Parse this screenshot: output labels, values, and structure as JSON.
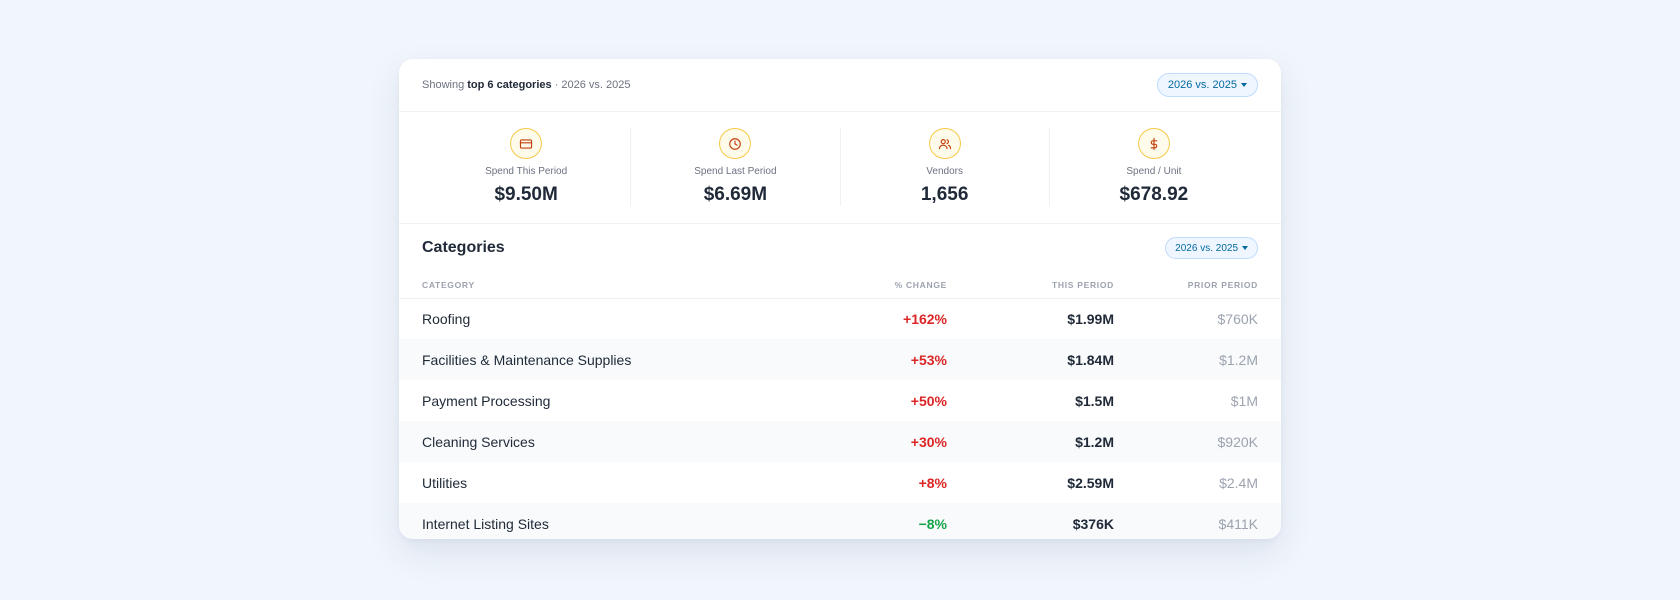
{
  "header": {
    "showing_prefix": "Showing",
    "showing_bold": "top 6 categories",
    "showing_suffix": "· 2026 vs. 2025",
    "period_selector": "2026 vs. 2025"
  },
  "stats": [
    {
      "label": "Spend This Period",
      "value": "$9.50M",
      "icon": "credit-card-icon"
    },
    {
      "label": "Spend Last Period",
      "value": "$6.69M",
      "icon": "clock-icon"
    },
    {
      "label": "Vendors",
      "value": "1,656",
      "icon": "users-icon"
    },
    {
      "label": "Spend / Unit",
      "value": "$678.92",
      "icon": "dollar-icon"
    }
  ],
  "categories": {
    "title": "Categories",
    "period_selector": "2026 vs. 2025",
    "columns": {
      "category": "Category",
      "change": "% Change",
      "this_period": "This Period",
      "prior_period": "Prior Period"
    },
    "rows": [
      {
        "category": "Roofing",
        "change": "+162%",
        "this_period": "$1.99M",
        "prior_period": "$760K"
      },
      {
        "category": "Facilities & Maintenance Supplies",
        "change": "+53%",
        "this_period": "$1.84M",
        "prior_period": "$1.2M"
      },
      {
        "category": "Payment Processing",
        "change": "+50%",
        "this_period": "$1.5M",
        "prior_period": "$1M"
      },
      {
        "category": "Cleaning Services",
        "change": "+30%",
        "this_period": "$1.2M",
        "prior_period": "$920K"
      },
      {
        "category": "Utilities",
        "change": "+8%",
        "this_period": "$2.59M",
        "prior_period": "$2.4M"
      },
      {
        "category": "Internet Listing Sites",
        "change": "−8%",
        "this_period": "$376K",
        "prior_period": "$411K"
      }
    ]
  },
  "colors": {
    "accent": "#0369a1",
    "increase": "#dc2626",
    "decrease": "#16a34a",
    "icon_ring": "#f6c948",
    "icon_stroke": "#c2410c"
  }
}
